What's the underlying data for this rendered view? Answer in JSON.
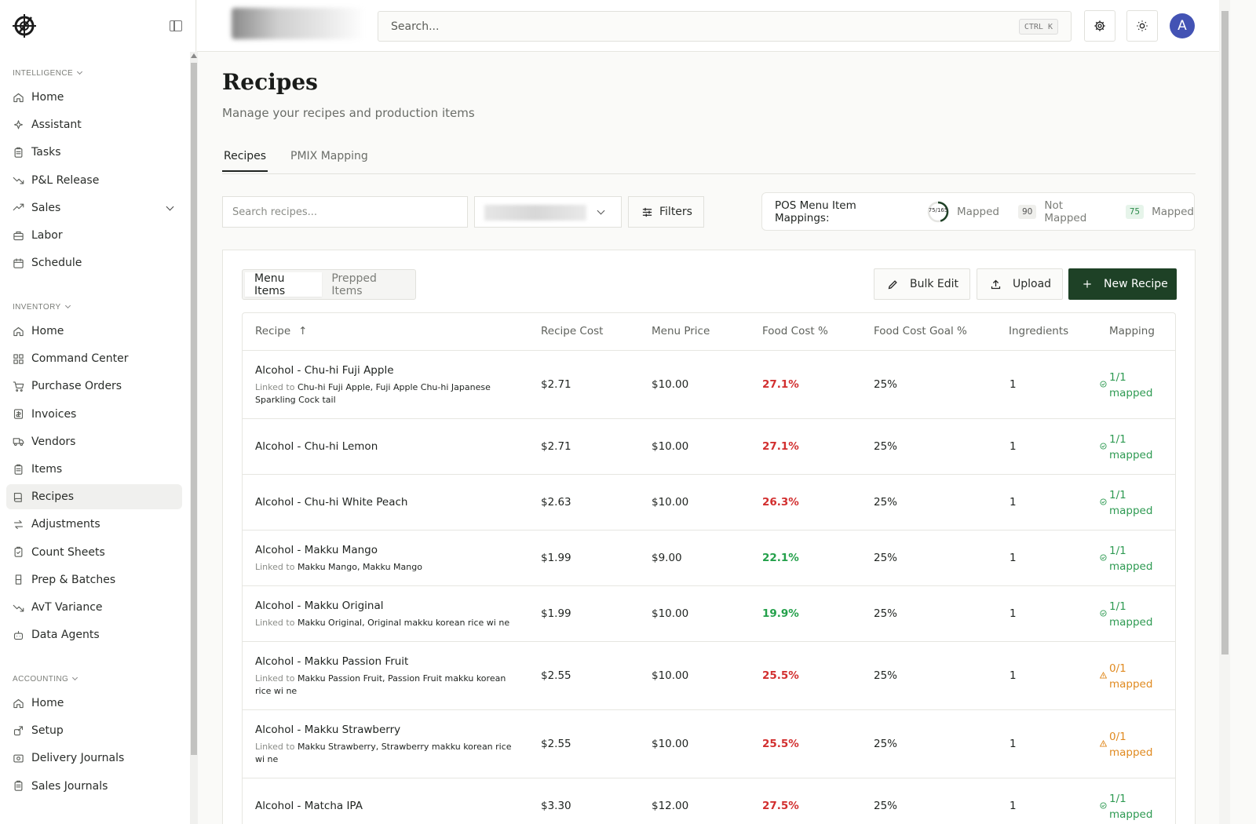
{
  "sidebar": {
    "sections": [
      {
        "title": "INTELLIGENCE",
        "items": [
          {
            "label": "Home",
            "icon": "home-icon"
          },
          {
            "label": "Assistant",
            "icon": "sparkle-icon"
          },
          {
            "label": "Tasks",
            "icon": "clipboard-icon"
          },
          {
            "label": "P&L Release",
            "icon": "trend-down-icon"
          },
          {
            "label": "Sales",
            "icon": "trend-up-icon"
          },
          {
            "label": "Labor",
            "icon": "briefcase-icon"
          },
          {
            "label": "Schedule",
            "icon": "calendar-icon"
          }
        ]
      },
      {
        "title": "INVENTORY",
        "items": [
          {
            "label": "Home",
            "icon": "home-icon"
          },
          {
            "label": "Command Center",
            "icon": "grid-icon"
          },
          {
            "label": "Purchase Orders",
            "icon": "cart-icon"
          },
          {
            "label": "Invoices",
            "icon": "invoice-icon"
          },
          {
            "label": "Vendors",
            "icon": "truck-icon"
          },
          {
            "label": "Items",
            "icon": "clipboard-icon"
          },
          {
            "label": "Recipes",
            "icon": "book-icon"
          },
          {
            "label": "Adjustments",
            "icon": "arrows-icon"
          },
          {
            "label": "Count Sheets",
            "icon": "clipboard-check-icon"
          },
          {
            "label": "Prep & Batches",
            "icon": "flask-icon"
          },
          {
            "label": "AvT Variance",
            "icon": "trend-down-icon"
          },
          {
            "label": "Data Agents",
            "icon": "bot-icon"
          }
        ]
      },
      {
        "title": "ACCOUNTING",
        "items": [
          {
            "label": "Home",
            "icon": "home-icon"
          },
          {
            "label": "Setup",
            "icon": "setup-icon"
          },
          {
            "label": "Delivery Journals",
            "icon": "journal-icon"
          },
          {
            "label": "Sales Journals",
            "icon": "clipboard-icon"
          }
        ]
      }
    ],
    "active_item": "Recipes"
  },
  "topbar": {
    "search_placeholder": "Search...",
    "shortcut": "CTRL K",
    "avatar_initial": "A"
  },
  "page": {
    "title": "Recipes",
    "subtitle": "Manage your recipes and production items",
    "tabs": [
      "Recipes",
      "PMIX Mapping"
    ]
  },
  "toolbar": {
    "search_placeholder": "Search recipes...",
    "filters_label": "Filters"
  },
  "pos": {
    "label": "POS Menu Item Mappings:",
    "ring_text": "75/165",
    "mapped_fraction": 0.4545,
    "mapped_label": "Mapped",
    "not_mapped_count": "90",
    "not_mapped_label": "Not Mapped",
    "mapped_count": "75",
    "mapped_label2": "Mapped"
  },
  "panel": {
    "segments": [
      "Menu Items",
      "Prepped Items"
    ],
    "bulk_edit": "Bulk Edit",
    "upload": "Upload",
    "new_recipe": "New Recipe"
  },
  "table": {
    "headers": [
      "Recipe",
      "Recipe Cost",
      "Menu Price",
      "Food Cost %",
      "Food Cost Goal %",
      "Ingredients",
      "Mapping"
    ],
    "linked_prefix": "Linked to",
    "rows": [
      {
        "name": "Alcohol - Chu-hi Fuji Apple",
        "linked": "Chu-hi Fuji Apple, Fuji Apple Chu-hi Japanese Sparkling Cock tail",
        "cost": "$2.71",
        "price": "$10.00",
        "food_cost": "27.1%",
        "status": "red",
        "goal": "25%",
        "ingredients": "1",
        "mapping": "1/1",
        "mapping_state": "ok"
      },
      {
        "name": "Alcohol - Chu-hi Lemon",
        "linked": "",
        "cost": "$2.71",
        "price": "$10.00",
        "food_cost": "27.1%",
        "status": "red",
        "goal": "25%",
        "ingredients": "1",
        "mapping": "1/1",
        "mapping_state": "ok"
      },
      {
        "name": "Alcohol - Chu-hi White Peach",
        "linked": "",
        "cost": "$2.63",
        "price": "$10.00",
        "food_cost": "26.3%",
        "status": "red",
        "goal": "25%",
        "ingredients": "1",
        "mapping": "1/1",
        "mapping_state": "ok"
      },
      {
        "name": "Alcohol - Makku Mango",
        "linked": "Makku Mango, Makku Mango",
        "cost": "$1.99",
        "price": "$9.00",
        "food_cost": "22.1%",
        "status": "green",
        "goal": "25%",
        "ingredients": "1",
        "mapping": "1/1",
        "mapping_state": "ok"
      },
      {
        "name": "Alcohol - Makku Original",
        "linked": "Makku Original, Original makku korean rice wi ne",
        "cost": "$1.99",
        "price": "$10.00",
        "food_cost": "19.9%",
        "status": "green",
        "goal": "25%",
        "ingredients": "1",
        "mapping": "1/1",
        "mapping_state": "ok"
      },
      {
        "name": "Alcohol - Makku Passion Fruit",
        "linked": "Makku Passion Fruit, Passion Fruit makku korean rice wi ne",
        "cost": "$2.55",
        "price": "$10.00",
        "food_cost": "25.5%",
        "status": "red",
        "goal": "25%",
        "ingredients": "1",
        "mapping": "0/1",
        "mapping_state": "warn"
      },
      {
        "name": "Alcohol - Makku Strawberry",
        "linked": "Makku Strawberry, Strawberry makku korean rice wi ne",
        "cost": "$2.55",
        "price": "$10.00",
        "food_cost": "25.5%",
        "status": "red",
        "goal": "25%",
        "ingredients": "1",
        "mapping": "0/1",
        "mapping_state": "warn"
      },
      {
        "name": "Alcohol - Matcha IPA",
        "linked": "",
        "cost": "$3.30",
        "price": "$12.00",
        "food_cost": "27.5%",
        "status": "red",
        "goal": "25%",
        "ingredients": "1",
        "mapping": "1/1",
        "mapping_state": "ok"
      }
    ],
    "mapped_word": "mapped"
  },
  "colors": {
    "accent": "#1e4126",
    "red": "#d22f2f",
    "green": "#23a04a",
    "warn": "#e08a20",
    "avatar": "#4353b4"
  }
}
